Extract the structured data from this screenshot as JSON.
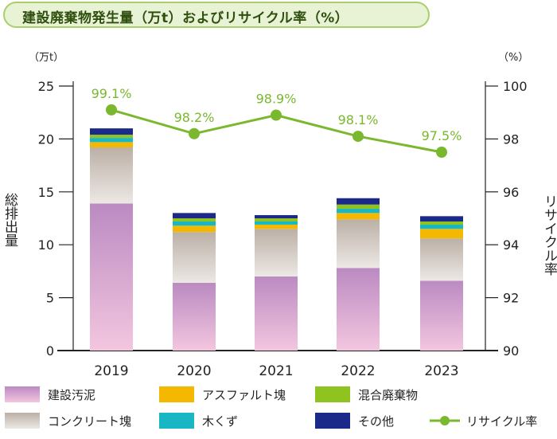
{
  "title": "建設廃棄物発生量（万t）およびリサイクル率（%）",
  "left_unit": "（万t）",
  "right_unit": "（%）",
  "left_axis_label": "総排出量",
  "right_axis_label": "リサイクル率",
  "colors": {
    "建設汚泥": "#c08fc4",
    "コンクリート塊": "#c9c0b8",
    "アスファルト塊": "#f5b800",
    "木くず": "#19b7c4",
    "混合廃棄物": "#8fc31f",
    "その他": "#1b2a8a",
    "リサイクル率": "#7ab82e"
  },
  "chart_data": {
    "type": "bar",
    "stacked": true,
    "categories": [
      "2019",
      "2020",
      "2021",
      "2022",
      "2023"
    ],
    "series": [
      {
        "name": "建設汚泥",
        "values": [
          13.9,
          6.4,
          7.0,
          7.8,
          6.6
        ]
      },
      {
        "name": "コンクリート塊",
        "values": [
          5.3,
          4.8,
          4.5,
          4.6,
          4.0
        ]
      },
      {
        "name": "アスファルト塊",
        "values": [
          0.5,
          0.6,
          0.4,
          0.6,
          0.9
        ]
      },
      {
        "name": "木くず",
        "values": [
          0.4,
          0.4,
          0.3,
          0.4,
          0.4
        ]
      },
      {
        "name": "混合廃棄物",
        "values": [
          0.3,
          0.3,
          0.3,
          0.4,
          0.3
        ]
      },
      {
        "name": "その他",
        "values": [
          0.6,
          0.5,
          0.3,
          0.6,
          0.5
        ]
      }
    ],
    "line_series": {
      "name": "リサイクル率",
      "values": [
        99.1,
        98.2,
        98.9,
        98.1,
        97.5
      ],
      "labels": [
        "99.1%",
        "98.2%",
        "98.9%",
        "98.1%",
        "97.5%"
      ]
    },
    "ylim": [
      0,
      25
    ],
    "yticks": [
      0,
      5,
      10,
      15,
      20,
      25
    ],
    "y2lim": [
      90,
      100
    ],
    "y2ticks": [
      90,
      92,
      94,
      96,
      98,
      100
    ],
    "legend": [
      "建設汚泥",
      "アスファルト塊",
      "混合廃棄物",
      "コンクリート塊",
      "木くず",
      "その他",
      "リサイクル率"
    ],
    "legend_position": "bottom"
  }
}
